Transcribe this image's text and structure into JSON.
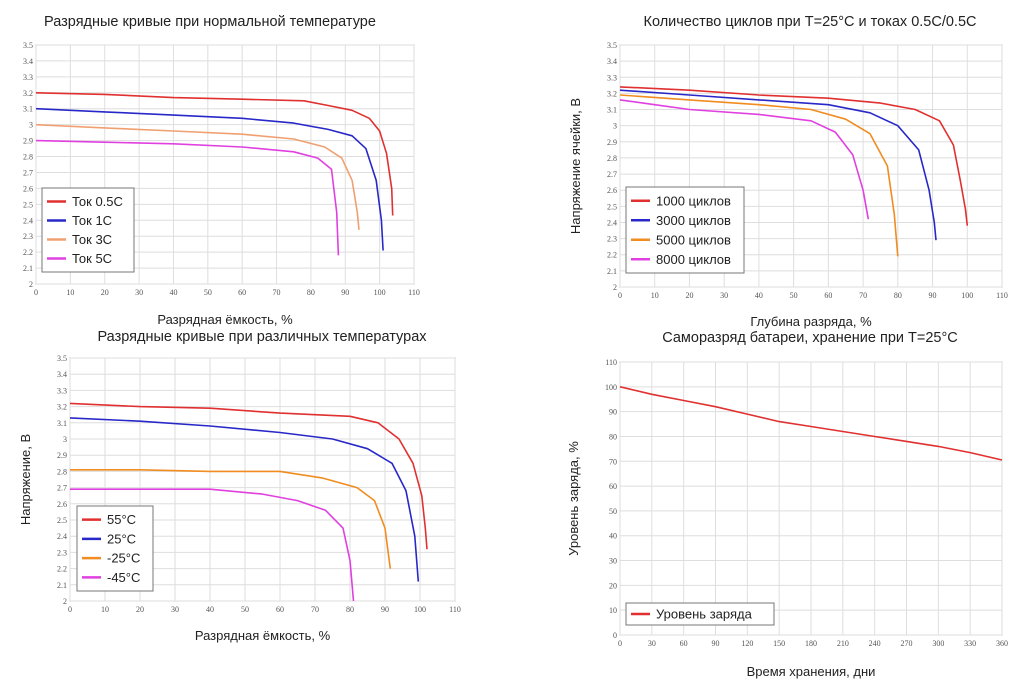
{
  "chart_data": [
    {
      "type": "line",
      "title": "Разрядные кривые при нормальной температуре",
      "xlabel": "Разрядная ёмкость, %",
      "ylabel": "",
      "xlim": [
        0,
        110
      ],
      "ylim": [
        2,
        3.5
      ],
      "xticks": [
        "0",
        "10",
        "20",
        "30",
        "40",
        "50",
        "60",
        "70",
        "80",
        "90",
        "100",
        "110"
      ],
      "yticks": [
        "2",
        "2.1",
        "2.2",
        "2.3",
        "2.4",
        "2.5",
        "2.6",
        "2.7",
        "2.8",
        "2.9",
        "3",
        "3.1",
        "3.2",
        "3.3",
        "3.4",
        "3.5"
      ],
      "grid": true,
      "legend_position": "bottom-left",
      "series": [
        {
          "name": "Ток 0.5C",
          "color": "#e03030",
          "x": [
            0,
            20,
            40,
            60,
            78,
            85,
            92,
            97,
            100,
            102,
            103.5,
            103.8
          ],
          "y": [
            3.2,
            3.19,
            3.17,
            3.16,
            3.15,
            3.12,
            3.09,
            3.04,
            2.96,
            2.82,
            2.6,
            2.43
          ]
        },
        {
          "name": "Ток 1C",
          "color": "#2828c8",
          "x": [
            0,
            20,
            40,
            60,
            75,
            85,
            92,
            96,
            99,
            100.5,
            101
          ],
          "y": [
            3.1,
            3.08,
            3.06,
            3.04,
            3.01,
            2.97,
            2.93,
            2.85,
            2.65,
            2.4,
            2.21
          ]
        },
        {
          "name": "Ток 3C",
          "color": "#f0a070",
          "x": [
            0,
            20,
            40,
            60,
            75,
            84,
            89,
            92,
            93.5,
            94
          ],
          "y": [
            3.0,
            2.98,
            2.96,
            2.94,
            2.91,
            2.86,
            2.79,
            2.65,
            2.45,
            2.34
          ]
        },
        {
          "name": "Ток 5C",
          "color": "#e040e0",
          "x": [
            0,
            20,
            40,
            60,
            75,
            82,
            86,
            87.5,
            88
          ],
          "y": [
            2.9,
            2.89,
            2.88,
            2.86,
            2.83,
            2.79,
            2.72,
            2.45,
            2.18
          ]
        }
      ]
    },
    {
      "type": "line",
      "title": "Количество циклов при T=25°C и токах 0.5C/0.5C",
      "xlabel": "Глубина разряда, %",
      "ylabel": "Напряжение ячейки, В",
      "xlim": [
        0,
        110
      ],
      "ylim": [
        2,
        3.5
      ],
      "xticks": [
        "0",
        "10",
        "20",
        "30",
        "40",
        "50",
        "60",
        "70",
        "80",
        "90",
        "100",
        "110"
      ],
      "yticks": [
        "2",
        "2.1",
        "2.2",
        "2.3",
        "2.4",
        "2.5",
        "2.6",
        "2.7",
        "2.8",
        "2.9",
        "3",
        "3.1",
        "3.2",
        "3.3",
        "3.4",
        "3.5"
      ],
      "grid": true,
      "legend_position": "bottom-left",
      "series": [
        {
          "name": "1000 циклов",
          "color": "#e03030",
          "x": [
            0,
            20,
            40,
            60,
            75,
            85,
            92,
            96,
            98,
            99.5,
            100
          ],
          "y": [
            3.24,
            3.22,
            3.19,
            3.17,
            3.14,
            3.1,
            3.03,
            2.88,
            2.66,
            2.48,
            2.38
          ]
        },
        {
          "name": "3000 циклов",
          "color": "#2828c8",
          "x": [
            0,
            20,
            40,
            60,
            72,
            80,
            86,
            89,
            90.5,
            91
          ],
          "y": [
            3.22,
            3.19,
            3.16,
            3.13,
            3.08,
            3.0,
            2.85,
            2.6,
            2.4,
            2.29
          ]
        },
        {
          "name": "5000 циклов",
          "color": "#f08c20",
          "x": [
            0,
            20,
            40,
            55,
            65,
            72,
            77,
            79,
            80
          ],
          "y": [
            3.19,
            3.16,
            3.13,
            3.1,
            3.04,
            2.95,
            2.75,
            2.45,
            2.19
          ]
        },
        {
          "name": "8000 циклов",
          "color": "#e040e0",
          "x": [
            0,
            10,
            20,
            40,
            55,
            62,
            67,
            70,
            71.5
          ],
          "y": [
            3.16,
            3.13,
            3.1,
            3.07,
            3.03,
            2.96,
            2.82,
            2.6,
            2.42
          ]
        }
      ]
    },
    {
      "type": "line",
      "title": "Разрядные кривые при различных температурах",
      "xlabel": "Разрядная ёмкость, %",
      "ylabel": "Напряжение, В",
      "xlim": [
        0,
        110
      ],
      "ylim": [
        2,
        3.5
      ],
      "xticks": [
        "0",
        "10",
        "20",
        "30",
        "40",
        "50",
        "60",
        "70",
        "80",
        "90",
        "100",
        "110"
      ],
      "yticks": [
        "2",
        "2.1",
        "2.2",
        "2.3",
        "2.4",
        "2.5",
        "2.6",
        "2.7",
        "2.8",
        "2.9",
        "3",
        "3.1",
        "3.2",
        "3.3",
        "3.4",
        "3.5"
      ],
      "grid": true,
      "legend_position": "bottom-left",
      "series": [
        {
          "name": "55°C",
          "color": "#e03030",
          "x": [
            0,
            20,
            40,
            60,
            80,
            88,
            94,
            98,
            100.5,
            101.5,
            102
          ],
          "y": [
            3.22,
            3.2,
            3.19,
            3.16,
            3.14,
            3.1,
            3.0,
            2.85,
            2.65,
            2.45,
            2.32
          ]
        },
        {
          "name": "25°C",
          "color": "#2828c8",
          "x": [
            0,
            20,
            40,
            60,
            75,
            85,
            92,
            96,
            98.5,
            99.5
          ],
          "y": [
            3.13,
            3.11,
            3.08,
            3.04,
            3.0,
            2.94,
            2.85,
            2.68,
            2.4,
            2.12
          ]
        },
        {
          "name": "-25°C",
          "color": "#f08c20",
          "x": [
            0,
            20,
            40,
            60,
            72,
            82,
            87,
            90,
            91.5
          ],
          "y": [
            2.81,
            2.81,
            2.8,
            2.8,
            2.76,
            2.7,
            2.62,
            2.45,
            2.2
          ]
        },
        {
          "name": "-45°C",
          "color": "#e040e0",
          "x": [
            0,
            20,
            40,
            55,
            65,
            73,
            78,
            80,
            81
          ],
          "y": [
            2.69,
            2.69,
            2.69,
            2.66,
            2.62,
            2.56,
            2.45,
            2.25,
            2.0
          ]
        }
      ]
    },
    {
      "type": "line",
      "title": "Саморазряд батареи, хранение при T=25°C",
      "xlabel": "Время хранения, дни",
      "ylabel": "Уровень заряда, %",
      "xlim": [
        0,
        360
      ],
      "ylim": [
        0,
        110
      ],
      "xticks": [
        "0",
        "30",
        "60",
        "90",
        "120",
        "150",
        "180",
        "210",
        "240",
        "270",
        "300",
        "330",
        "360"
      ],
      "yticks": [
        "0",
        "10",
        "20",
        "30",
        "40",
        "50",
        "60",
        "70",
        "80",
        "90",
        "100",
        "110"
      ],
      "grid": true,
      "legend_position": "bottom-left",
      "series": [
        {
          "name": "Уровень заряда",
          "color": "#e03030",
          "x": [
            0,
            30,
            60,
            90,
            120,
            150,
            180,
            210,
            240,
            270,
            300,
            330,
            360
          ],
          "y": [
            100,
            97,
            94.5,
            92,
            89,
            86,
            84,
            82,
            80,
            78,
            76,
            73.5,
            70.5
          ]
        }
      ]
    }
  ]
}
